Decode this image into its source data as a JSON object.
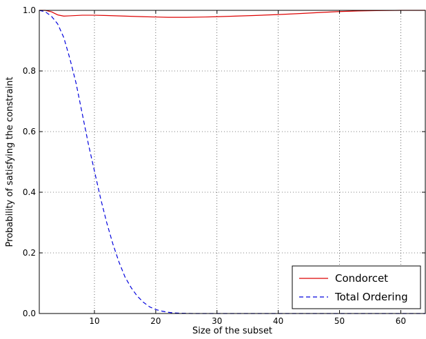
{
  "chart_data": {
    "type": "line",
    "title": "",
    "xlabel": "Size of the subset",
    "ylabel": "Probability of satisfying the constraint",
    "xlim": [
      1,
      64
    ],
    "ylim": [
      0.0,
      1.0
    ],
    "xticks": [
      10,
      20,
      30,
      40,
      50,
      60
    ],
    "yticks": [
      0.0,
      0.2,
      0.4,
      0.6,
      0.8,
      1.0
    ],
    "xtick_labels": [
      "10",
      "20",
      "30",
      "40",
      "50",
      "60"
    ],
    "ytick_labels": [
      "0.0",
      "0.2",
      "0.4",
      "0.6",
      "0.8",
      "1.0"
    ],
    "grid": true,
    "legend_position": "bottom-right",
    "series": [
      {
        "name": "Condorcet",
        "color": "#dd0000",
        "style": "solid",
        "x": [
          1,
          2,
          3,
          4,
          5,
          6,
          8,
          10,
          12,
          15,
          18,
          20,
          22,
          25,
          28,
          30,
          33,
          36,
          40,
          43,
          46,
          50,
          53,
          56,
          60,
          64
        ],
        "y": [
          1.0,
          1.0,
          0.995,
          0.985,
          0.981,
          0.982,
          0.984,
          0.984,
          0.983,
          0.981,
          0.979,
          0.978,
          0.977,
          0.977,
          0.978,
          0.979,
          0.981,
          0.983,
          0.986,
          0.989,
          0.992,
          0.996,
          0.998,
          0.999,
          1.0,
          1.0
        ]
      },
      {
        "name": "Total Ordering",
        "color": "#0000dd",
        "style": "dashed",
        "x": [
          1,
          2,
          3,
          4,
          5,
          6,
          7,
          8,
          9,
          10,
          11,
          12,
          13,
          14,
          15,
          16,
          17,
          18,
          19,
          20,
          21,
          22,
          23,
          24,
          25,
          26,
          28,
          30,
          35,
          40,
          50,
          64
        ],
        "y": [
          1.0,
          0.995,
          0.98,
          0.955,
          0.91,
          0.84,
          0.76,
          0.66,
          0.56,
          0.47,
          0.38,
          0.3,
          0.23,
          0.17,
          0.12,
          0.085,
          0.057,
          0.037,
          0.022,
          0.013,
          0.008,
          0.004,
          0.002,
          0.001,
          0.0005,
          0.0,
          0.0,
          0.0,
          0.0,
          0.0,
          0.0,
          0.0
        ]
      }
    ]
  }
}
